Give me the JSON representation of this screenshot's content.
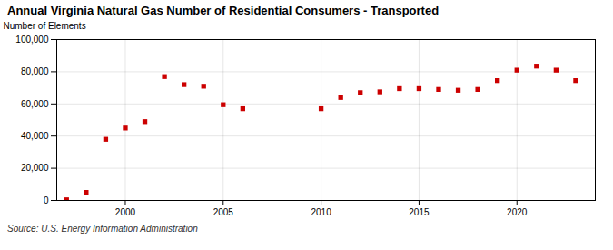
{
  "chart_data": {
    "type": "scatter",
    "title": "Annual Virginia Natural Gas Number of Residential Consumers - Transported",
    "ylabel": "Number of Elements",
    "source": "Source: U.S. Energy Information Administration",
    "x": [
      1997,
      1998,
      1999,
      2000,
      2001,
      2002,
      2003,
      2004,
      2005,
      2006,
      2010,
      2011,
      2012,
      2013,
      2014,
      2015,
      2016,
      2017,
      2018,
      2019,
      2020,
      2021,
      2022,
      2023
    ],
    "values": [
      400,
      5000,
      38000,
      45000,
      49000,
      77000,
      72000,
      71000,
      59500,
      57000,
      57000,
      64000,
      67000,
      67500,
      69500,
      69500,
      69000,
      68500,
      69000,
      74500,
      81000,
      83500,
      81000,
      74500
    ],
    "color": "#cc0000",
    "marker": "square",
    "xlim": [
      1996.5,
      2024
    ],
    "xticks": [
      2000,
      2005,
      2010,
      2015,
      2020
    ],
    "ylim": [
      0,
      100000
    ],
    "yticks": [
      0,
      {
        "value": 20000,
        "label": "20,000"
      },
      {
        "value": 40000,
        "label": "40,000"
      },
      {
        "value": 60000,
        "label": "60,000"
      },
      {
        "value": 80000,
        "label": "80,000"
      },
      {
        "value": 100000,
        "label": "100,000"
      }
    ],
    "grid": true
  }
}
